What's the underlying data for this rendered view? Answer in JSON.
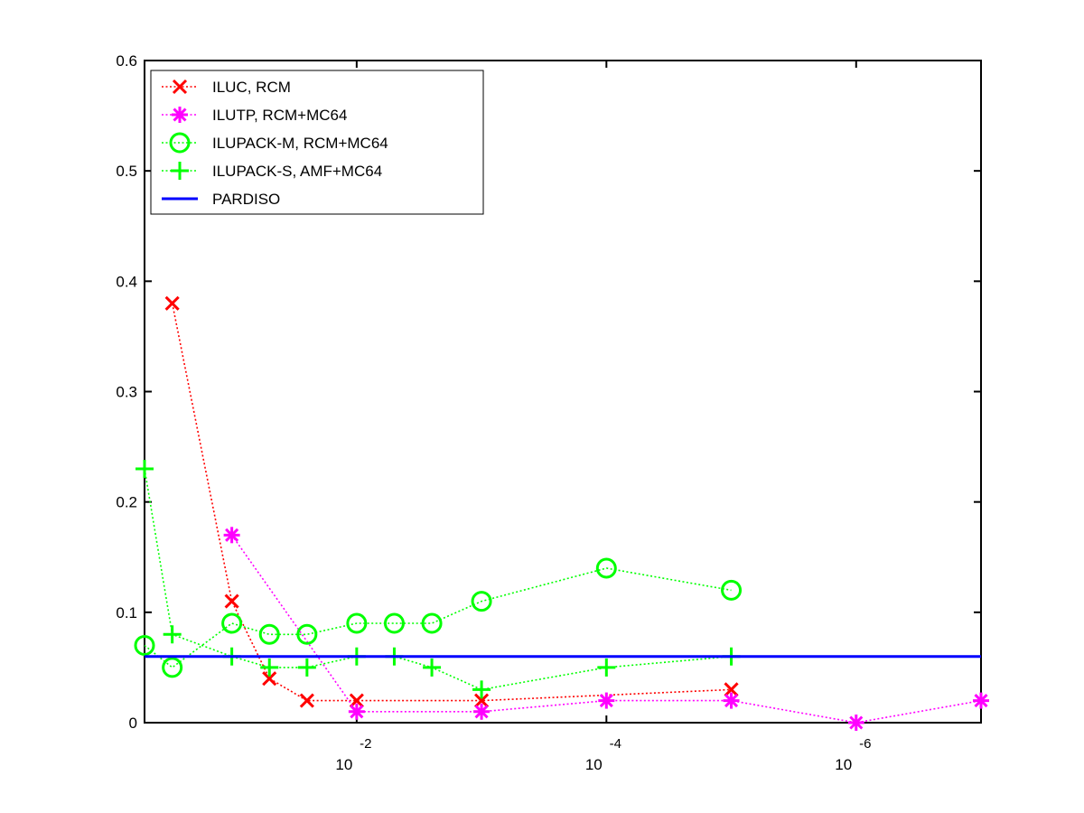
{
  "chart_data": {
    "type": "line",
    "xscale": "log",
    "xaxis_reversed": true,
    "xlim": [
      0.5,
      1e-07
    ],
    "ylim": [
      0,
      0.6
    ],
    "yticks": [
      "0",
      "0.1",
      "0.2",
      "0.3",
      "0.4",
      "0.5",
      "0.6"
    ],
    "xticks": [
      {
        "value": 0.01,
        "base": "10",
        "exp": "-2"
      },
      {
        "value": 0.0001,
        "base": "10",
        "exp": "-4"
      },
      {
        "value": 1e-06,
        "base": "10",
        "exp": "-6"
      }
    ],
    "grid": false,
    "legend_position": "top-left",
    "series": [
      {
        "name": "ILUC, RCM",
        "color": "#ff0000",
        "marker": "x",
        "linestyle": "dotted",
        "x": [
          0.3,
          0.1,
          0.05,
          0.025,
          0.01,
          0.001,
          1e-05
        ],
        "y": [
          0.38,
          0.11,
          0.04,
          0.02,
          0.02,
          0.02,
          0.03
        ]
      },
      {
        "name": "ILUTP, RCM+MC64",
        "color": "#ff00ff",
        "marker": "asterisk",
        "linestyle": "dotted",
        "x": [
          0.1,
          0.01,
          0.001,
          0.0001,
          1e-05,
          1e-06,
          1e-07
        ],
        "y": [
          0.17,
          0.01,
          0.01,
          0.02,
          0.02,
          0.0,
          0.02
        ]
      },
      {
        "name": "ILUPACK-M, RCM+MC64",
        "color": "#00ff00",
        "marker": "circle",
        "linestyle": "dotted",
        "x": [
          0.5,
          0.3,
          0.1,
          0.05,
          0.025,
          0.01,
          0.005,
          0.0025,
          0.001,
          0.0001,
          1e-05
        ],
        "y": [
          0.07,
          0.05,
          0.09,
          0.08,
          0.08,
          0.09,
          0.09,
          0.09,
          0.11,
          0.14,
          0.12
        ]
      },
      {
        "name": "ILUPACK-S, AMF+MC64",
        "color": "#00ff00",
        "marker": "plus",
        "linestyle": "dotted",
        "x": [
          0.5,
          0.3,
          0.1,
          0.05,
          0.025,
          0.01,
          0.005,
          0.0025,
          0.001,
          0.0001,
          1e-05
        ],
        "y": [
          0.23,
          0.08,
          0.06,
          0.05,
          0.05,
          0.06,
          0.06,
          0.05,
          0.03,
          0.05,
          0.06
        ]
      },
      {
        "name": "PARDISO",
        "color": "#0000ff",
        "marker": "none",
        "linestyle": "solid",
        "x": [
          0.5,
          1e-07
        ],
        "y": [
          0.06,
          0.06
        ]
      }
    ]
  }
}
